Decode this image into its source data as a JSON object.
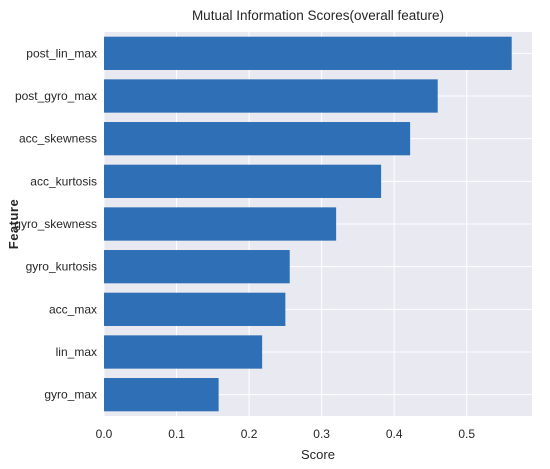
{
  "chart_data": {
    "type": "bar",
    "orientation": "horizontal",
    "title": "Mutual Information Scores(overall feature)",
    "xlabel": "Score",
    "ylabel": "Feature",
    "categories": [
      "post_lin_max",
      "post_gyro_max",
      "acc_skewness",
      "acc_kurtosis",
      "gyro_skewness",
      "gyro_kurtosis",
      "acc_max",
      "lin_max",
      "gyro_max"
    ],
    "values": [
      0.562,
      0.46,
      0.422,
      0.382,
      0.32,
      0.256,
      0.25,
      0.218,
      0.158
    ],
    "xlim": [
      0.0,
      0.59
    ],
    "xticks": [
      "0.0",
      "0.1",
      "0.2",
      "0.3",
      "0.4",
      "0.5"
    ],
    "bar_color": "#2e6fb5",
    "background_color": "#e9e9f1",
    "grid_color": "#ffffff",
    "grid": true
  }
}
